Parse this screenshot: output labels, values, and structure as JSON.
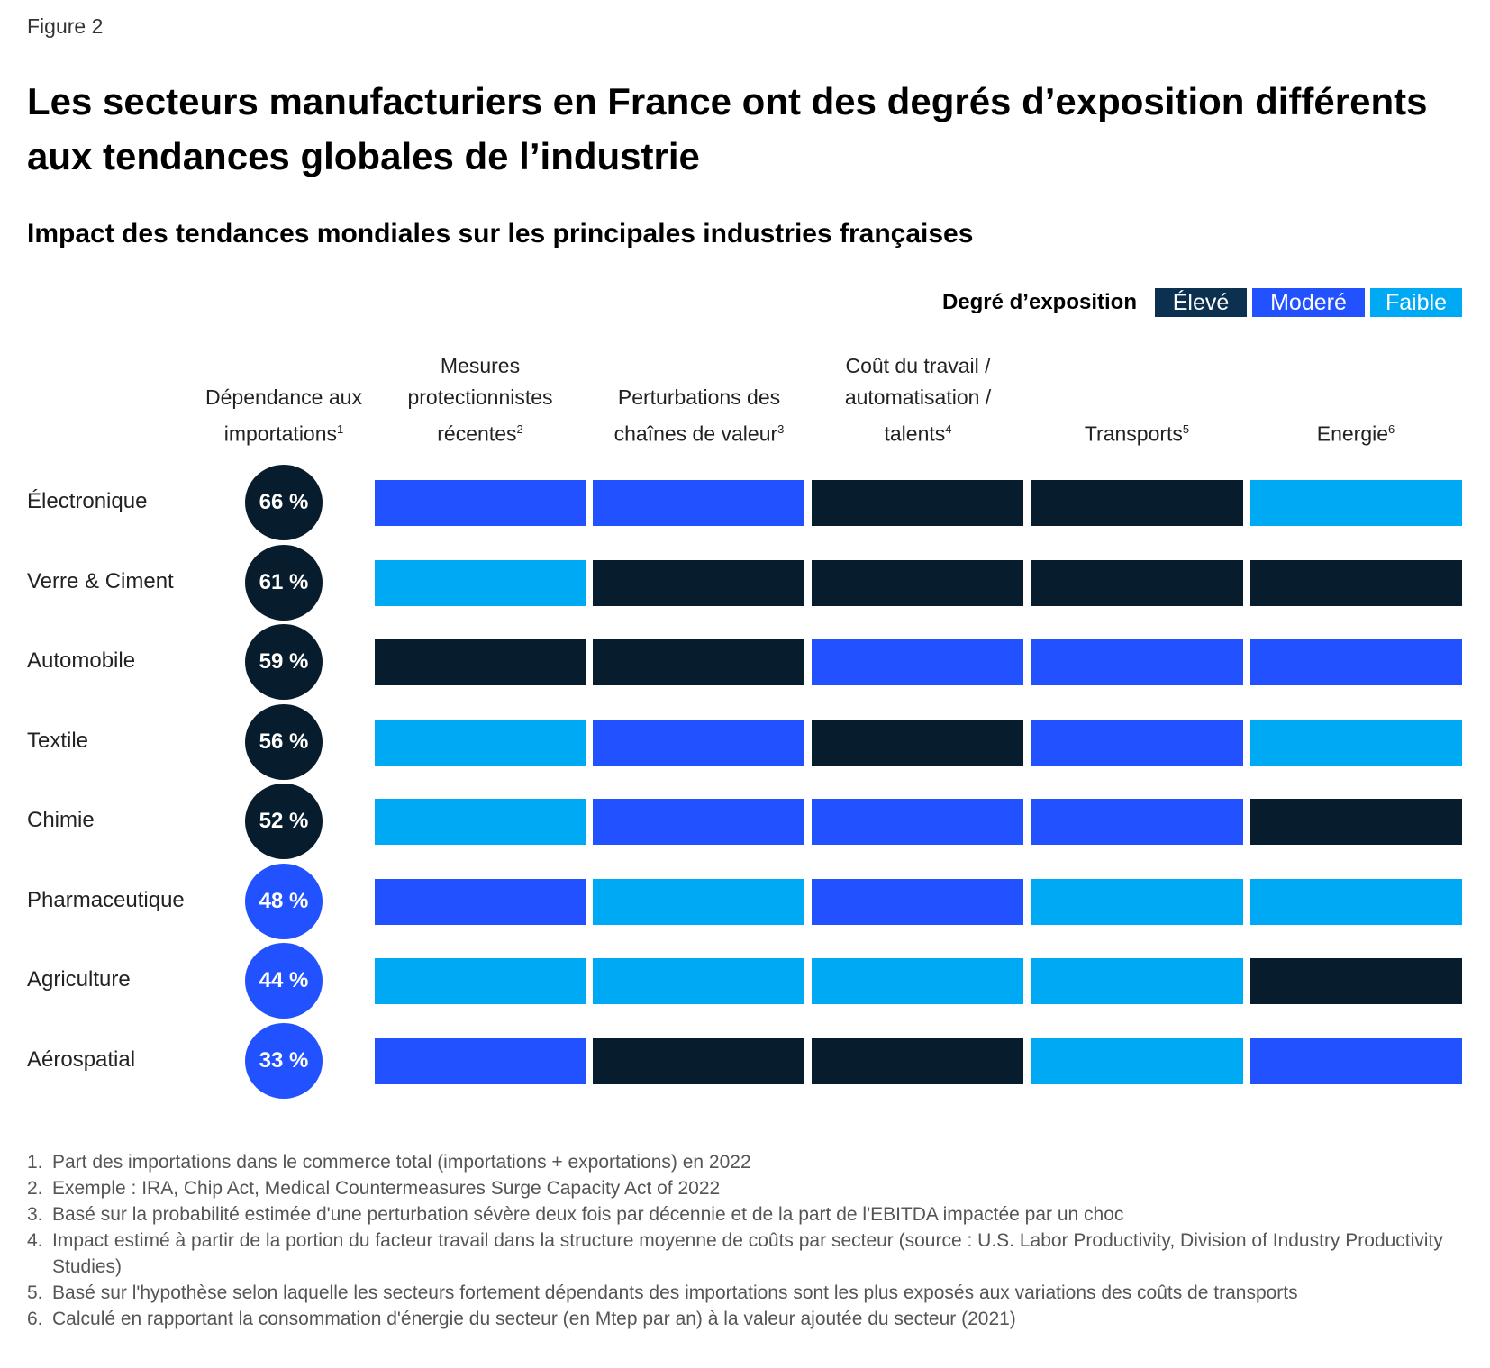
{
  "figure_label": "Figure 2",
  "title": "Les secteurs manufacturiers en France ont des degrés d’exposition différents aux tendances globales de l’industrie",
  "chart_data": {
    "type": "table",
    "title": "Impact des tendances mondiales sur les principales industries françaises",
    "legend": {
      "label": "Degré d’exposition",
      "placement": "top-right",
      "levels": [
        {
          "key": "high",
          "label": "Élevé",
          "color": "#071c2c"
        },
        {
          "key": "mod",
          "label": "Moderé",
          "color": "#2251ff"
        },
        {
          "key": "low",
          "label": "Faible",
          "color": "#00a9f4"
        }
      ]
    },
    "columns": [
      {
        "label": "Dépendance aux importations",
        "note": "1"
      },
      {
        "label": "Mesures protectionnistes récentes",
        "note": "2"
      },
      {
        "label": "Perturbations des chaînes de valeur",
        "note": "3"
      },
      {
        "label": "Coût du travail / automatisation / talents",
        "note": "4"
      },
      {
        "label": "Transports",
        "note": "5"
      },
      {
        "label": "Energie",
        "note": "6"
      }
    ],
    "rows": [
      {
        "sector": "Électronique",
        "import": "66 %",
        "import_level": "high",
        "levels": [
          "mod",
          "mod",
          "high",
          "high",
          "low"
        ]
      },
      {
        "sector": "Verre & Ciment",
        "import": "61 %",
        "import_level": "high",
        "levels": [
          "low",
          "high",
          "high",
          "high",
          "high"
        ]
      },
      {
        "sector": "Automobile",
        "import": "59 %",
        "import_level": "high",
        "levels": [
          "high",
          "high",
          "mod",
          "mod",
          "mod"
        ]
      },
      {
        "sector": "Textile",
        "import": "56 %",
        "import_level": "high",
        "levels": [
          "low",
          "mod",
          "high",
          "mod",
          "low"
        ]
      },
      {
        "sector": "Chimie",
        "import": "52 %",
        "import_level": "high",
        "levels": [
          "low",
          "mod",
          "mod",
          "mod",
          "high"
        ]
      },
      {
        "sector": "Pharmaceutique",
        "import": "48 %",
        "import_level": "mod",
        "levels": [
          "mod",
          "low",
          "mod",
          "low",
          "low"
        ]
      },
      {
        "sector": "Agriculture",
        "import": "44 %",
        "import_level": "mod",
        "levels": [
          "low",
          "low",
          "low",
          "low",
          "high"
        ]
      },
      {
        "sector": "Aérospatial",
        "import": "33 %",
        "import_level": "mod",
        "levels": [
          "mod",
          "high",
          "high",
          "low",
          "mod"
        ]
      }
    ]
  },
  "footnotes": [
    {
      "n": "1.",
      "text": "Part des importations dans le commerce total (importations + exportations) en 2022"
    },
    {
      "n": "2.",
      "text": "Exemple : IRA, Chip Act, Medical Countermeasures Surge Capacity Act of 2022"
    },
    {
      "n": "3.",
      "text": "Basé sur la probabilité estimée d'une perturbation sévère deux fois par décennie et de la part de l'EBITDA impactée par un choc"
    },
    {
      "n": "4.",
      "text": "Impact estimé à partir de la portion du facteur travail dans la structure moyenne de coûts par secteur (source : U.S. Labor Productivity, Division of Industry Productivity Studies)"
    },
    {
      "n": "5.",
      "text": "Basé sur l'hypothèse selon laquelle les secteurs fortement dépendants des importations sont les plus exposés aux variations des coûts de transports"
    },
    {
      "n": "6.",
      "text": "Calculé en rapportant la consommation d'énergie du secteur (en Mtep par an) à la valeur ajoutée du secteur (2021)"
    }
  ]
}
